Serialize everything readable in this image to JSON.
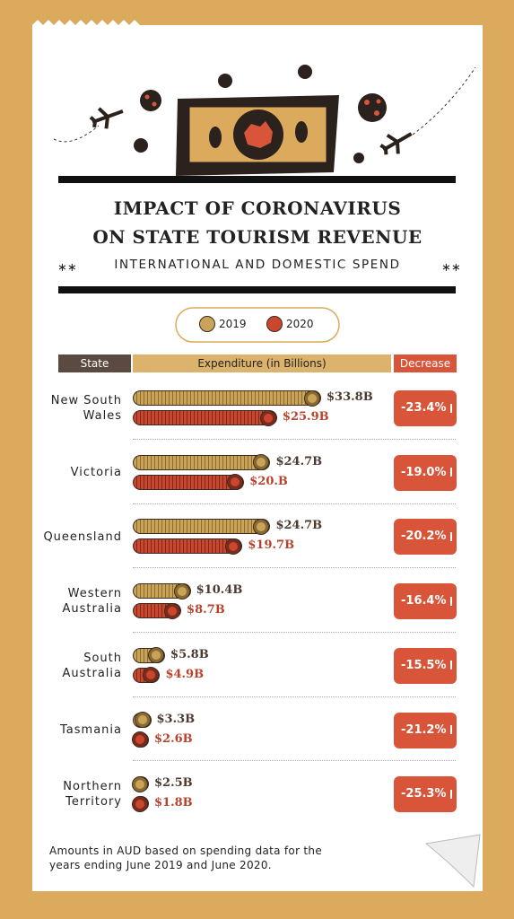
{
  "chart_data": {
    "type": "bar",
    "title": "IMPACT OF CORONAVIRUS\nON STATE TOURISM REVENUE",
    "subtitle": "INTERNATIONAL AND DOMESTIC SPEND",
    "category_label": "State",
    "value_label": "Expenditure (in Billions)",
    "categories": [
      "New South\nWales",
      "Victoria",
      "Queensland",
      "Western\nAustralia",
      "South\nAustralia",
      "Tasmania",
      "Northern\nTerritory"
    ],
    "series": [
      {
        "name": "2019",
        "color": "#c9a458",
        "values": [
          33.8,
          24.7,
          24.7,
          10.4,
          5.8,
          3.3,
          2.5
        ],
        "value_labels": [
          "$33.8B",
          "$24.7B",
          "$24.7B",
          "$10.4B",
          "$5.8B",
          "$3.3B",
          "$2.5B"
        ]
      },
      {
        "name": "2020",
        "color": "#c9472f",
        "values": [
          25.9,
          20,
          19.7,
          8.7,
          4.9,
          2.6,
          1.8
        ],
        "value_labels": [
          "$25.9B",
          "$20.B",
          "$19.7B",
          "$8.7B",
          "$4.9B",
          "$2.6B",
          "$1.8B"
        ]
      }
    ],
    "decrease": {
      "name": "Decrease",
      "color": "#d9553a",
      "values": [
        -23.4,
        -19.0,
        -20.2,
        -16.4,
        -15.5,
        -21.2,
        -25.3
      ],
      "value_labels": [
        "-23.4%",
        "-19.0%",
        "-20.2%",
        "-16.4%",
        "-15.5%",
        "-21.2%",
        "-25.3%"
      ]
    },
    "note": "Amounts in AUD based on spending data for the\nyears ending June 2019 and June 2020."
  }
}
